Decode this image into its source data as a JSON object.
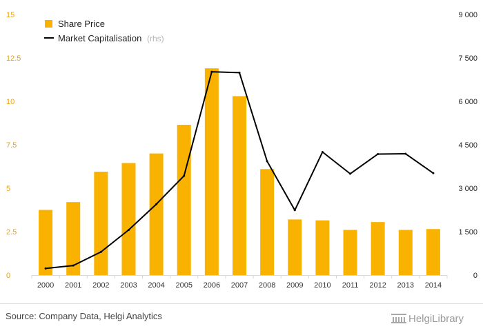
{
  "chart_data": {
    "type": "bar+line",
    "categories": [
      "2000",
      "2001",
      "2002",
      "2003",
      "2004",
      "2005",
      "2006",
      "2007",
      "2008",
      "2009",
      "2010",
      "2011",
      "2012",
      "2013",
      "2014"
    ],
    "series": [
      {
        "name": "Share Price",
        "type": "bar",
        "axis": "left",
        "color": "#f9b200",
        "values": [
          3.75,
          4.2,
          5.95,
          6.45,
          7.0,
          8.65,
          11.9,
          10.3,
          6.1,
          3.2,
          3.15,
          2.6,
          3.05,
          2.6,
          2.65
        ]
      },
      {
        "name": "Market Capitalisation",
        "suffix": "(rhs)",
        "type": "line",
        "axis": "right",
        "color": "#000000",
        "values": [
          230,
          330,
          800,
          1560,
          2450,
          3430,
          7020,
          6990,
          3930,
          2240,
          4250,
          3500,
          4180,
          4190,
          3520
        ]
      }
    ],
    "y_left": {
      "min": 0,
      "max": 15,
      "ticks": [
        "0",
        "2.5",
        "5",
        "7.5",
        "10",
        "12.5",
        "15"
      ],
      "tick_values": [
        0,
        2.5,
        5,
        7.5,
        10,
        12.5,
        15
      ],
      "color": "#e8a317"
    },
    "y_right": {
      "min": 0,
      "max": 9000,
      "ticks": [
        "0",
        "1 500",
        "3 000",
        "4 500",
        "6 000",
        "7 500",
        "9 000"
      ],
      "tick_values": [
        0,
        1500,
        3000,
        4500,
        6000,
        7500,
        9000
      ]
    },
    "grid": false,
    "legend_position": "top-left",
    "xlabel": "",
    "ylabel": ""
  },
  "footer": {
    "source": "Source: Company Data, Helgi Analytics",
    "brand": "HelgiLibrary"
  }
}
